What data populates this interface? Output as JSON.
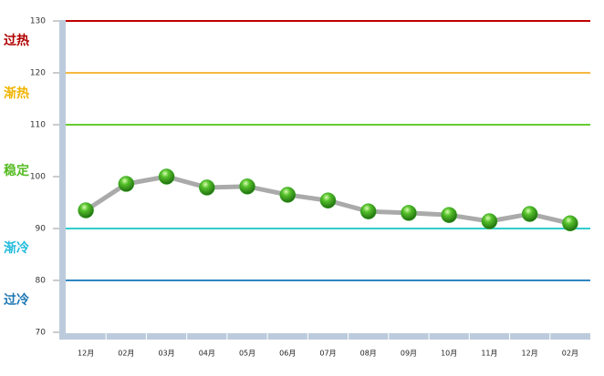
{
  "chart_data": {
    "type": "line",
    "categories": [
      "12月",
      "02月",
      "03月",
      "04月",
      "05月",
      "06月",
      "07月",
      "08月",
      "09月",
      "10月",
      "11月",
      "12月",
      "02月"
    ],
    "values": [
      93.5,
      98.6,
      100,
      97.9,
      98.1,
      96.5,
      95.4,
      93.3,
      93,
      92.6,
      91.4,
      92.8,
      91
    ],
    "color": "#aaaaaa",
    "marker_color": "#33aa22",
    "ylim": [
      70,
      130
    ],
    "yticks": [
      70,
      80,
      90,
      100,
      110,
      120,
      130
    ],
    "reference_lines": [
      {
        "value": 130,
        "color": "#c00000"
      },
      {
        "value": 120,
        "color": "#f5b841"
      },
      {
        "value": 110,
        "color": "#66cc33"
      },
      {
        "value": 90,
        "color": "#33cccc"
      },
      {
        "value": 80,
        "color": "#2e86c1"
      }
    ],
    "zones": [
      {
        "label": "过热",
        "color": "#b00000"
      },
      {
        "label": "渐热",
        "color": "#f0b400"
      },
      {
        "label": "稳定",
        "color": "#55bb22"
      },
      {
        "label": "渐冷",
        "color": "#22bbdd"
      },
      {
        "label": "过冷",
        "color": "#1f78b4"
      }
    ]
  }
}
